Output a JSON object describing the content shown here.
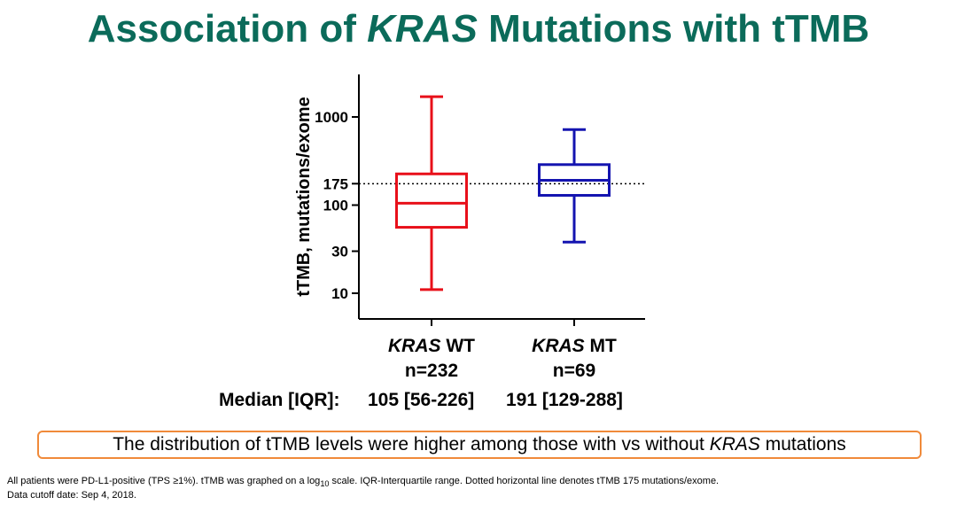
{
  "title": {
    "part1": "Association of ",
    "part2": "KRAS",
    "part3": " Mutations with tTMB"
  },
  "chart_data": {
    "type": "boxplot",
    "ylabel": "tTMB, mutations/exome",
    "yscale": "log10",
    "ylim": [
      5,
      2500
    ],
    "yticks": [
      10,
      30,
      100,
      175,
      1000
    ],
    "yticklabels": [
      "10",
      "30",
      "100",
      "175",
      "1000"
    ],
    "reference_line": {
      "y": 175,
      "style": "dotted"
    },
    "categories": [
      {
        "gene": "KRAS",
        "status": " WT",
        "n": "n=232",
        "color": "#e8101a",
        "whisker_low": 11,
        "q1": 56,
        "median": 105,
        "q3": 226,
        "whisker_high": 1700
      },
      {
        "gene": "KRAS",
        "status": " MT",
        "n": "n=69",
        "color": "#1414b0",
        "whisker_low": 38,
        "q1": 129,
        "median": 191,
        "q3": 288,
        "whisker_high": 720
      }
    ]
  },
  "median_row": {
    "label": "Median [IQR]:",
    "values": [
      "105 [56-226]",
      "191 [129-288]"
    ]
  },
  "callout": {
    "part1": "The distribution of tTMB levels were higher among those with vs without ",
    "part2": "KRAS",
    "part3": " mutations"
  },
  "footnote": {
    "line1_a": "All patients were PD-L1-positive (TPS ≥1%). tTMB was graphed on a log",
    "line1_sub": "10",
    "line1_b": " scale. IQR-Interquartile range. Dotted horizontal line denotes tTMB 175 mutations/exome.",
    "line2": "Data cutoff date: Sep 4, 2018."
  }
}
